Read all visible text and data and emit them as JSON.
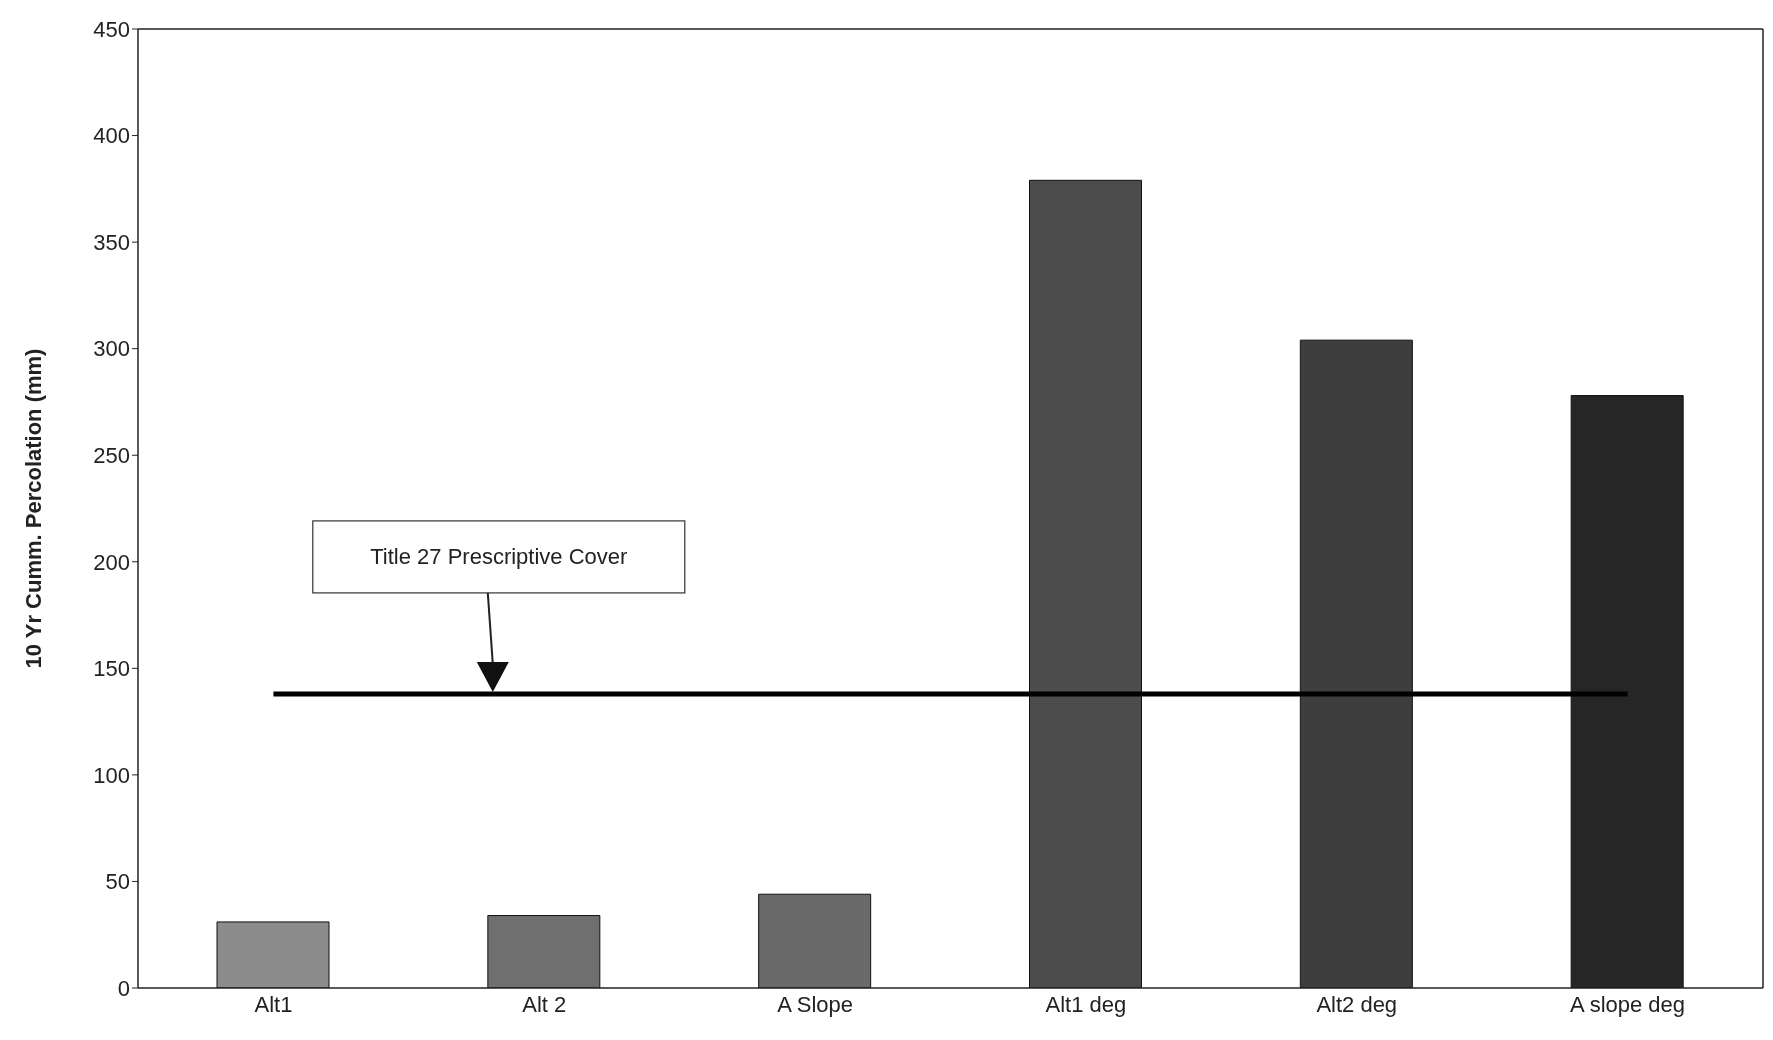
{
  "chart_data": {
    "type": "bar",
    "ylabel": "10 Yr  Cumm. Percolation (mm)",
    "categories": [
      "Alt1",
      "Alt 2",
      "A Slope",
      "Alt1 deg",
      "Alt2 deg",
      "A slope deg"
    ],
    "values": [
      31,
      34,
      44,
      379,
      304,
      278
    ],
    "colors": [
      "#8c8c8c",
      "#6f6f6f",
      "#6a6a6a",
      "#4c4c4c",
      "#3e3e3e",
      "#262626"
    ],
    "ylim": [
      0,
      450
    ],
    "yticks": [
      0,
      50,
      100,
      150,
      200,
      250,
      300,
      350,
      400,
      450
    ],
    "grid": false,
    "legend": false,
    "ref_lines": [
      {
        "axis": "y",
        "value": 138,
        "label": "Title 27 Prescriptive Cover",
        "color": "#000000"
      }
    ]
  }
}
